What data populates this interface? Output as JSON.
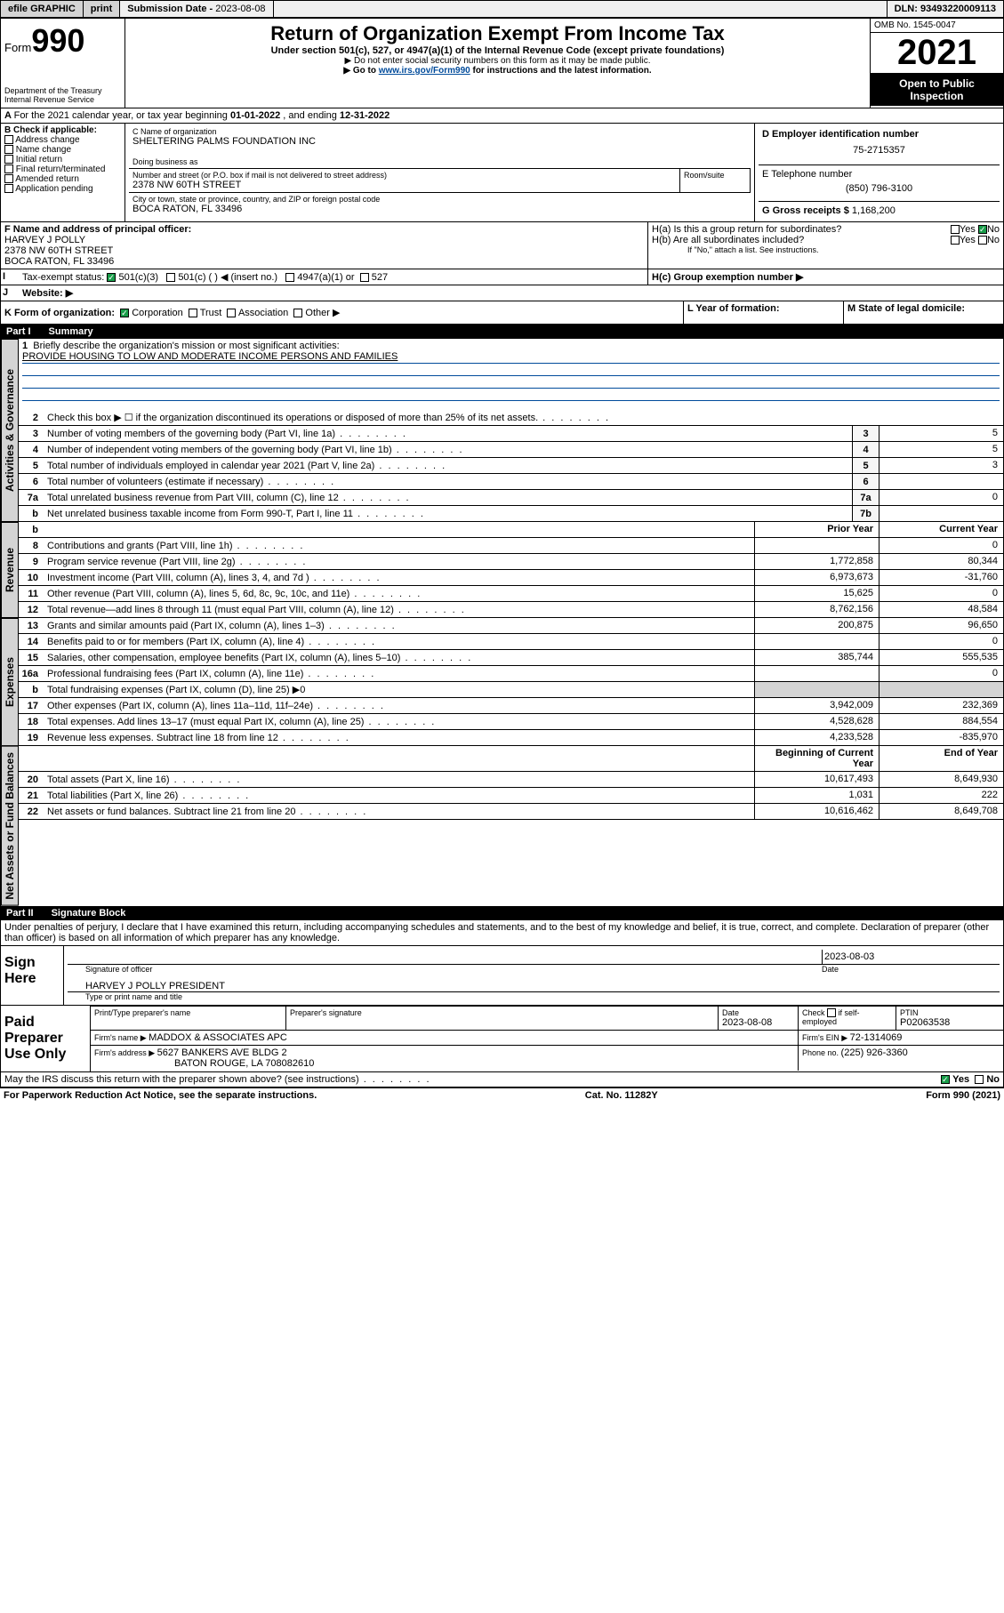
{
  "topbar": {
    "efile": "efile GRAPHIC",
    "print": "print",
    "submission_label": "Submission Date - ",
    "submission_date": "2023-08-08",
    "dln_label": "DLN: ",
    "dln": "93493220009113"
  },
  "header": {
    "form_prefix": "Form",
    "form_number": "990",
    "dept": "Department of the Treasury",
    "irs": "Internal Revenue Service",
    "title": "Return of Organization Exempt From Income Tax",
    "subtitle": "Under section 501(c), 527, or 4947(a)(1) of the Internal Revenue Code (except private foundations)",
    "note1": "▶ Do not enter social security numbers on this form as it may be made public.",
    "note2_pre": "▶ Go to ",
    "note2_link": "www.irs.gov/Form990",
    "note2_post": " for instructions and the latest information.",
    "omb": "OMB No. 1545-0047",
    "year": "2021",
    "inspection": "Open to Public Inspection"
  },
  "period": {
    "label_a": "For the 2021 calendar year, or tax year beginning ",
    "begin": "01-01-2022",
    "label_b": " , and ending ",
    "end": "12-31-2022"
  },
  "box_b": {
    "header": "B Check if applicable:",
    "opts": [
      "Address change",
      "Name change",
      "Initial return",
      "Final return/terminated",
      "Amended return",
      "Application pending"
    ]
  },
  "box_c": {
    "name_label": "C Name of organization",
    "name": "SHELTERING PALMS FOUNDATION INC",
    "dba_label": "Doing business as",
    "addr_label": "Number and street (or P.O. box if mail is not delivered to street address)",
    "room_label": "Room/suite",
    "street": "2378 NW 60TH STREET",
    "city_label": "City or town, state or province, country, and ZIP or foreign postal code",
    "city": "BOCA RATON, FL  33496"
  },
  "box_d": {
    "label": "D Employer identification number",
    "value": "75-2715357"
  },
  "box_e": {
    "label": "E Telephone number",
    "value": "(850) 796-3100"
  },
  "box_g": {
    "label": "G Gross receipts $ ",
    "value": "1,168,200"
  },
  "box_f": {
    "label": "F  Name and address of principal officer:",
    "name": "HARVEY J POLLY",
    "street": "2378 NW 60TH STREET",
    "city": "BOCA RATON, FL  33496"
  },
  "box_h": {
    "ha": "H(a)  Is this a group return for subordinates?",
    "hb": "H(b)  Are all subordinates included?",
    "hb_note": "If \"No,\" attach a list. See instructions.",
    "hc": "H(c)  Group exemption number ▶",
    "yes": "Yes",
    "no": "No"
  },
  "box_i": {
    "label": "Tax-exempt status:",
    "o1": "501(c)(3)",
    "o2": "501(c) (  ) ◀ (insert no.)",
    "o3": "4947(a)(1) or",
    "o4": "527"
  },
  "box_j": {
    "label": "Website: ▶"
  },
  "box_k": {
    "label": "K Form of organization:",
    "o1": "Corporation",
    "o2": "Trust",
    "o3": "Association",
    "o4": "Other ▶"
  },
  "box_l": {
    "label": "L Year of formation:"
  },
  "box_m": {
    "label": "M State of legal domicile:"
  },
  "part1": {
    "pt": "Part I",
    "title": "Summary"
  },
  "mission": {
    "q": "Briefly describe the organization's mission or most significant activities:",
    "text": "PROVIDE HOUSING TO LOW AND MODERATE INCOME PERSONS AND FAMILIES"
  },
  "vtabs": {
    "gov": "Activities & Governance",
    "rev": "Revenue",
    "exp": "Expenses",
    "net": "Net Assets or Fund Balances"
  },
  "lines_gov": [
    {
      "n": "2",
      "d": "Check this box ▶ ☐  if the organization discontinued its operations or disposed of more than 25% of its net assets."
    },
    {
      "n": "3",
      "d": "Number of voting members of the governing body (Part VI, line 1a)",
      "box": "3",
      "v": "5"
    },
    {
      "n": "4",
      "d": "Number of independent voting members of the governing body (Part VI, line 1b)",
      "box": "4",
      "v": "5"
    },
    {
      "n": "5",
      "d": "Total number of individuals employed in calendar year 2021 (Part V, line 2a)",
      "box": "5",
      "v": "3"
    },
    {
      "n": "6",
      "d": "Total number of volunteers (estimate if necessary)",
      "box": "6",
      "v": ""
    },
    {
      "n": "7a",
      "d": "Total unrelated business revenue from Part VIII, column (C), line 12",
      "box": "7a",
      "v": "0"
    },
    {
      "n": "b",
      "d": "Net unrelated business taxable income from Form 990-T, Part I, line 11",
      "box": "7b",
      "v": ""
    }
  ],
  "cols": {
    "prior": "Prior Year",
    "current": "Current Year"
  },
  "lines_rev": [
    {
      "n": "8",
      "d": "Contributions and grants (Part VIII, line 1h)",
      "p": "",
      "c": "0"
    },
    {
      "n": "9",
      "d": "Program service revenue (Part VIII, line 2g)",
      "p": "1,772,858",
      "c": "80,344"
    },
    {
      "n": "10",
      "d": "Investment income (Part VIII, column (A), lines 3, 4, and 7d )",
      "p": "6,973,673",
      "c": "-31,760"
    },
    {
      "n": "11",
      "d": "Other revenue (Part VIII, column (A), lines 5, 6d, 8c, 9c, 10c, and 11e)",
      "p": "15,625",
      "c": "0"
    },
    {
      "n": "12",
      "d": "Total revenue—add lines 8 through 11 (must equal Part VIII, column (A), line 12)",
      "p": "8,762,156",
      "c": "48,584"
    }
  ],
  "lines_exp": [
    {
      "n": "13",
      "d": "Grants and similar amounts paid (Part IX, column (A), lines 1–3)",
      "p": "200,875",
      "c": "96,650"
    },
    {
      "n": "14",
      "d": "Benefits paid to or for members (Part IX, column (A), line 4)",
      "p": "",
      "c": "0"
    },
    {
      "n": "15",
      "d": "Salaries, other compensation, employee benefits (Part IX, column (A), lines 5–10)",
      "p": "385,744",
      "c": "555,535"
    },
    {
      "n": "16a",
      "d": "Professional fundraising fees (Part IX, column (A), line 11e)",
      "p": "",
      "c": "0"
    },
    {
      "n": "b",
      "d": "Total fundraising expenses (Part IX, column (D), line 25) ▶0",
      "shade": true
    },
    {
      "n": "17",
      "d": "Other expenses (Part IX, column (A), lines 11a–11d, 11f–24e)",
      "p": "3,942,009",
      "c": "232,369"
    },
    {
      "n": "18",
      "d": "Total expenses. Add lines 13–17 (must equal Part IX, column (A), line 25)",
      "p": "4,528,628",
      "c": "884,554"
    },
    {
      "n": "19",
      "d": "Revenue less expenses. Subtract line 18 from line 12",
      "p": "4,233,528",
      "c": "-835,970"
    }
  ],
  "cols2": {
    "begin": "Beginning of Current Year",
    "end": "End of Year"
  },
  "lines_net": [
    {
      "n": "20",
      "d": "Total assets (Part X, line 16)",
      "p": "10,617,493",
      "c": "8,649,930"
    },
    {
      "n": "21",
      "d": "Total liabilities (Part X, line 26)",
      "p": "1,031",
      "c": "222"
    },
    {
      "n": "22",
      "d": "Net assets or fund balances. Subtract line 21 from line 20",
      "p": "10,616,462",
      "c": "8,649,708"
    }
  ],
  "part2": {
    "pt": "Part II",
    "title": "Signature Block"
  },
  "penalties": "Under penalties of perjury, I declare that I have examined this return, including accompanying schedules and statements, and to the best of my knowledge and belief, it is true, correct, and complete. Declaration of preparer (other than officer) is based on all information of which preparer has any knowledge.",
  "sign": {
    "label": "Sign Here",
    "sig_label": "Signature of officer",
    "date_label": "Date",
    "date": "2023-08-03",
    "name": "HARVEY J POLLY PRESIDENT",
    "name_label": "Type or print name and title"
  },
  "paid": {
    "label": "Paid Preparer Use Only",
    "c1": "Print/Type preparer's name",
    "c2": "Preparer's signature",
    "c3": "Date",
    "c3v": "2023-08-08",
    "c4a": "Check",
    "c4b": "if self-employed",
    "c5": "PTIN",
    "c5v": "P02063538",
    "firm_label": "Firm's name    ▶ ",
    "firm": "MADDOX & ASSOCIATES APC",
    "ein_label": "Firm's EIN ▶ ",
    "ein": "72-1314069",
    "addr_label": "Firm's address ▶ ",
    "addr1": "5627 BANKERS AVE BLDG 2",
    "addr2": "BATON ROUGE, LA  708082610",
    "phone_label": "Phone no. ",
    "phone": "(225) 926-3360"
  },
  "discuss": {
    "q": "May the IRS discuss this return with the preparer shown above? (see instructions)",
    "yes": "Yes",
    "no": "No"
  },
  "footer": {
    "left": "For Paperwork Reduction Act Notice, see the separate instructions.",
    "mid": "Cat. No. 11282Y",
    "right_a": "Form ",
    "right_b": "990",
    "right_c": " (2021)"
  }
}
